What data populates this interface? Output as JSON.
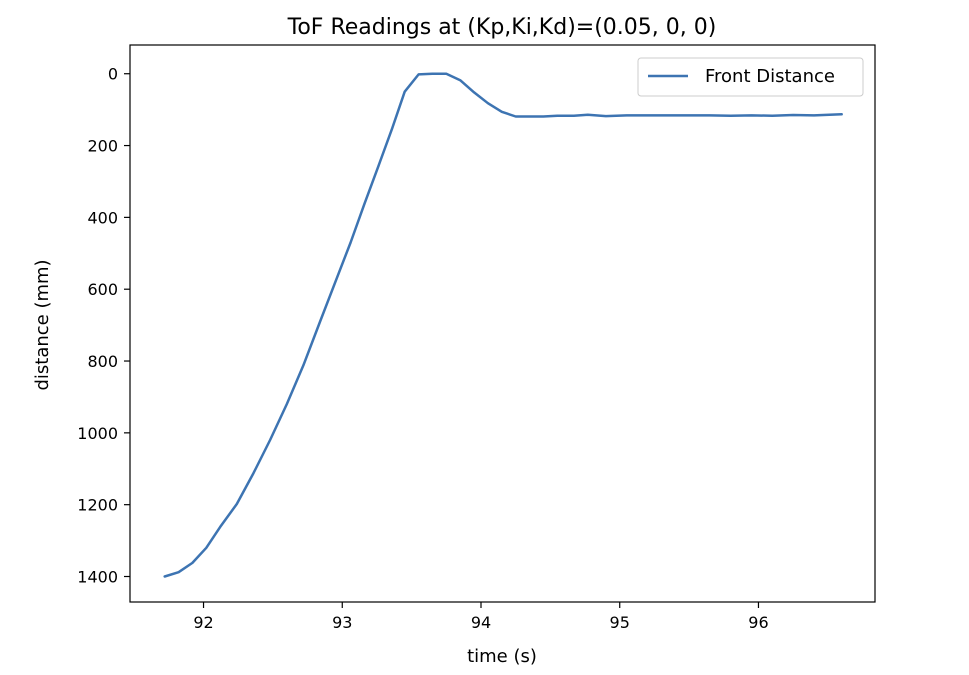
{
  "chart_data": {
    "type": "line",
    "title": "ToF Readings at (Kp,Ki,Kd)=(0.05, 0, 0)",
    "xlabel": "time (s)",
    "ylabel": "distance (mm)",
    "xlim": [
      91.47,
      96.84
    ],
    "ylim": [
      1471,
      -80
    ],
    "y_inverted": true,
    "x_ticks": [
      92,
      93,
      94,
      95,
      96
    ],
    "y_ticks": [
      0,
      200,
      400,
      600,
      800,
      1000,
      1200,
      1400
    ],
    "grid": false,
    "legend_position": "top-right",
    "series": [
      {
        "name": "Front Distance",
        "color": "#3d74b2",
        "x": [
          91.72,
          91.82,
          91.92,
          92.02,
          92.12,
          92.24,
          92.36,
          92.48,
          92.6,
          92.72,
          92.84,
          92.96,
          93.06,
          93.16,
          93.26,
          93.36,
          93.45,
          93.55,
          93.65,
          93.75,
          93.85,
          93.95,
          94.05,
          94.15,
          94.25,
          94.35,
          94.45,
          94.55,
          94.67,
          94.77,
          94.9,
          95.05,
          95.2,
          95.35,
          95.5,
          95.65,
          95.8,
          95.95,
          96.1,
          96.25,
          96.4,
          96.6
        ],
        "y": [
          1400,
          1388,
          1362,
          1320,
          1262,
          1198,
          1112,
          1020,
          920,
          812,
          690,
          570,
          470,
          362,
          258,
          152,
          50,
          2,
          0,
          0,
          18,
          52,
          82,
          106,
          119,
          119,
          119,
          117,
          117,
          114,
          118,
          116,
          116,
          116,
          116,
          116,
          117,
          116,
          117,
          115,
          116,
          113
        ]
      }
    ]
  }
}
